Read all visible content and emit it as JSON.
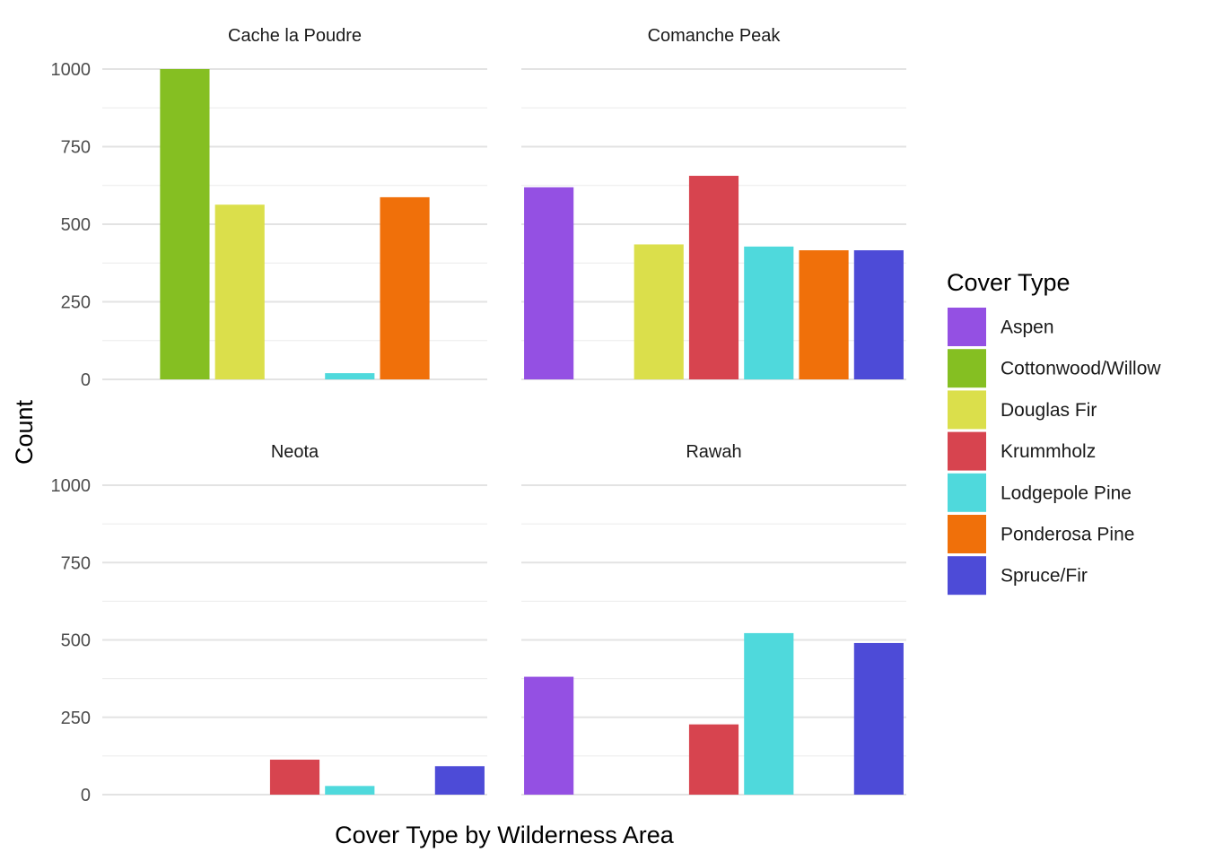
{
  "chart_data": {
    "type": "bar",
    "xlabel": "Cover Type by Wilderness Area",
    "ylabel": "Count",
    "ylim": [
      0,
      1000
    ],
    "yticks": [
      0,
      250,
      500,
      750,
      1000
    ],
    "grid": true,
    "legend": {
      "title": "Cover Type",
      "position": "right",
      "entries": [
        {
          "name": "Aspen",
          "color": "#9450e3"
        },
        {
          "name": "Cottonwood/Willow",
          "color": "#85bf22"
        },
        {
          "name": "Douglas Fir",
          "color": "#dbdf4b"
        },
        {
          "name": "Krummholz",
          "color": "#d7444f"
        },
        {
          "name": "Lodgepole Pine",
          "color": "#4fd9dc"
        },
        {
          "name": "Ponderosa Pine",
          "color": "#f0700a"
        },
        {
          "name": "Spruce/Fir",
          "color": "#4d4bd7"
        }
      ]
    },
    "categories": [
      "Aspen",
      "Cottonwood/Willow",
      "Douglas Fir",
      "Krummholz",
      "Lodgepole Pine",
      "Ponderosa Pine",
      "Spruce/Fir"
    ],
    "facets": [
      {
        "title": "Cache la Poudre",
        "values": [
          0,
          1000,
          563,
          0,
          20,
          587,
          0
        ]
      },
      {
        "title": "Comanche Peak",
        "values": [
          619,
          0,
          435,
          656,
          428,
          416,
          416
        ]
      },
      {
        "title": "Neota",
        "values": [
          0,
          0,
          0,
          113,
          28,
          0,
          92
        ]
      },
      {
        "title": "Rawah",
        "values": [
          381,
          0,
          0,
          227,
          522,
          0,
          490
        ]
      }
    ]
  }
}
